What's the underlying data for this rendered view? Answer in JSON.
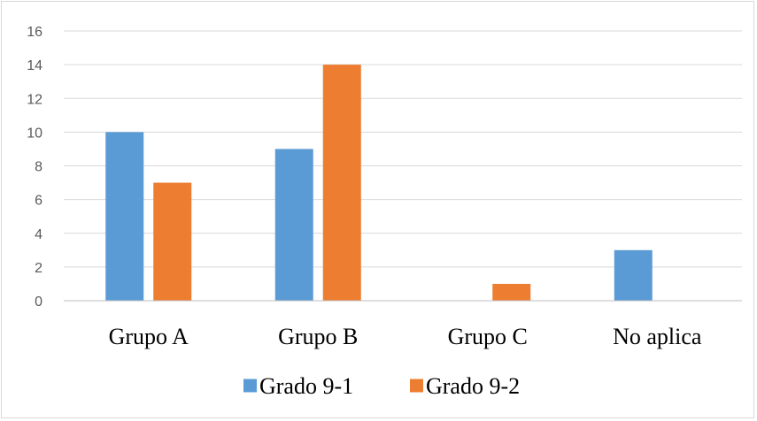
{
  "chart_data": {
    "type": "bar",
    "categories": [
      "Grupo A",
      "Grupo B",
      "Grupo C",
      "No aplica"
    ],
    "series": [
      {
        "name": "Grado 9-1",
        "color": "#5b9bd5",
        "values": [
          10,
          9,
          0,
          3
        ]
      },
      {
        "name": "Grado 9-2",
        "color": "#ed7d31",
        "values": [
          7,
          14,
          1,
          0
        ]
      }
    ],
    "yticks": [
      "0",
      "2",
      "4",
      "6",
      "8",
      "10",
      "12",
      "14",
      "16"
    ],
    "ylim": [
      0,
      16
    ],
    "grid": true,
    "legend": "bottom",
    "gridline_color": "#d9d9d9",
    "axis_color": "#bfbfbf"
  }
}
